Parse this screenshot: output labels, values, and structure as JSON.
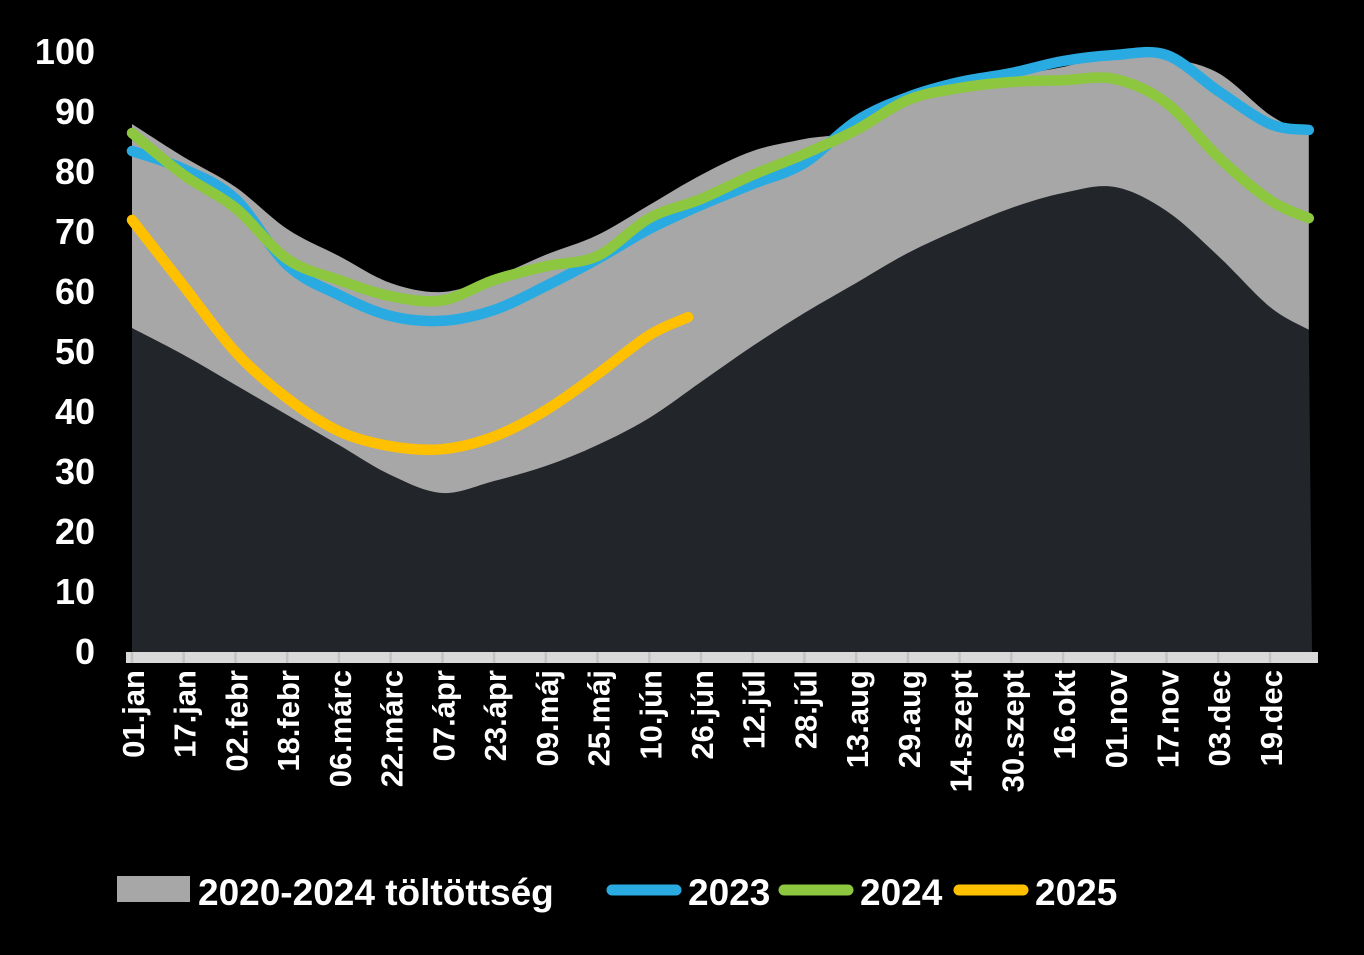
{
  "chart_data": {
    "type": "area",
    "description": "Gas storage fill level (%) through the year: grey min–max band 2020–2024 with yearly lines",
    "y_axis": {
      "min": 0,
      "max": 100,
      "step": 10,
      "ticks": [
        0,
        10,
        20,
        30,
        40,
        50,
        60,
        70,
        80,
        90,
        100
      ]
    },
    "x_axis": {
      "tick_interval_days": 16,
      "domain_days": 365,
      "tick_labels": [
        "01.jan",
        "17.jan",
        "02.febr",
        "18.febr",
        "06.márc",
        "22.márc",
        "07.ápr",
        "23.ápr",
        "09.máj",
        "25.máj",
        "10.jún",
        "26.jún",
        "12.júl",
        "28.júl",
        "13.aug",
        "29.aug",
        "14.szept",
        "30.szept",
        "16.okt",
        "01.nov",
        "17.nov",
        "03.dec",
        "19.dec"
      ]
    },
    "colors": {
      "background": "#000000",
      "band": "#a7a7a7",
      "below_band": "#22262a",
      "axis_bar": "#d9d9d9",
      "axis_tick": "#c3c3c3",
      "line_2023": "#29abe2",
      "line_2024": "#8dc63f",
      "line_2025": "#ffc000",
      "text": "#ffffff"
    },
    "band": {
      "name": "2020-2024 töltöttség",
      "days": [
        0,
        16,
        32,
        48,
        64,
        80,
        96,
        112,
        128,
        144,
        160,
        176,
        192,
        208,
        224,
        240,
        256,
        272,
        288,
        304,
        320,
        336,
        352,
        364
      ],
      "max": [
        88,
        82.5,
        77.5,
        70.5,
        66,
        61.5,
        60,
        62.5,
        66.2,
        69.5,
        74.5,
        79.5,
        83.5,
        85.5,
        87,
        92.5,
        94.5,
        96,
        97.5,
        99.5,
        99,
        96.5,
        89.5,
        86.3
      ],
      "min": [
        54,
        49.5,
        44.5,
        39.5,
        34.5,
        29.5,
        26.5,
        28.5,
        31,
        34.5,
        39,
        45,
        51,
        56.5,
        61.5,
        66.5,
        70.5,
        74,
        76.5,
        77.5,
        73.5,
        66,
        57.5,
        53.7
      ]
    },
    "series": [
      {
        "name": "2023",
        "color": "#29abe2",
        "days": [
          0,
          16,
          32,
          48,
          64,
          80,
          96,
          112,
          128,
          144,
          160,
          176,
          192,
          208,
          224,
          240,
          256,
          272,
          288,
          304,
          320,
          336,
          352,
          364
        ],
        "values": [
          83.5,
          80.5,
          75.5,
          64.5,
          59.5,
          56,
          55.2,
          57,
          61,
          65.5,
          70.5,
          74.5,
          78,
          81.5,
          88.5,
          92.5,
          95,
          96.5,
          98.5,
          99.5,
          99.5,
          93.5,
          88,
          87
        ]
      },
      {
        "name": "2024",
        "color": "#8dc63f",
        "days": [
          0,
          16,
          32,
          48,
          64,
          80,
          96,
          112,
          128,
          144,
          160,
          176,
          192,
          208,
          224,
          240,
          256,
          272,
          288,
          304,
          320,
          336,
          352,
          364
        ],
        "values": [
          86.5,
          79.5,
          74,
          65.5,
          62,
          59.3,
          58.6,
          62,
          64.3,
          66,
          72.3,
          75.5,
          79.5,
          83,
          87,
          92,
          94,
          95,
          95.3,
          95.5,
          91.5,
          82.5,
          75.3,
          72.3
        ]
      },
      {
        "name": "2025",
        "color": "#ffc000",
        "days": [
          0,
          16,
          32,
          48,
          64,
          80,
          96,
          112,
          128,
          144,
          160,
          172
        ],
        "values": [
          72,
          61,
          50,
          42.3,
          36.8,
          34.3,
          33.8,
          35.9,
          40.3,
          46.3,
          52.8,
          55.8
        ]
      }
    ],
    "legend": [
      {
        "label": "2020-2024 töltöttség",
        "swatch": "rect",
        "color": "#a7a7a7"
      },
      {
        "label": "2023",
        "swatch": "line",
        "color": "#29abe2"
      },
      {
        "label": "2024",
        "swatch": "line",
        "color": "#8dc63f"
      },
      {
        "label": "2025",
        "swatch": "line",
        "color": "#ffc000"
      }
    ]
  }
}
